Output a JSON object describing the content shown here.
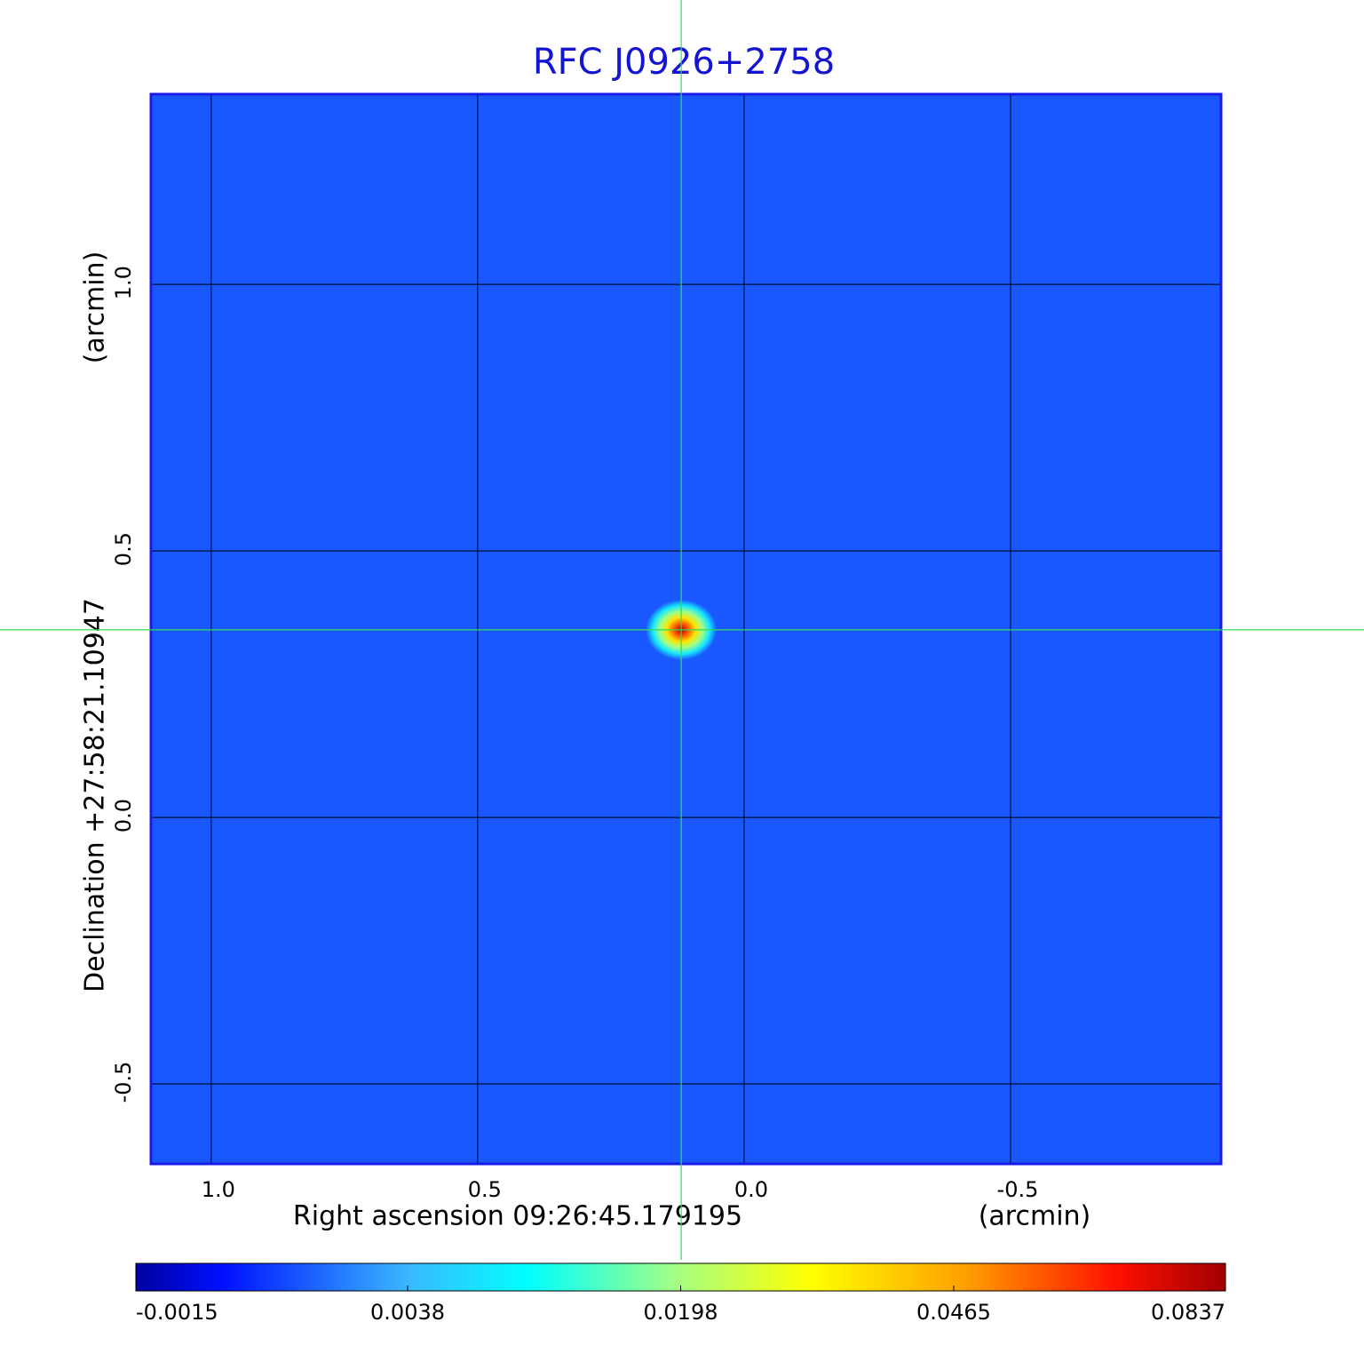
{
  "chart_data": {
    "type": "image",
    "title": "RFC J0926+2758",
    "xlabel": "Right ascension  09:26:45.179195",
    "xunit": "(arcmin)",
    "ylabel": "Declination  +27:58:21.10947",
    "yunit": "(arcmin)",
    "xlim": [
      1.113,
      -0.895
    ],
    "ylim": [
      -0.65,
      1.357
    ],
    "xticks": [
      {
        "value": 1,
        "label": "1.0"
      },
      {
        "value": 0.5,
        "label": "0.5"
      },
      {
        "value": 0,
        "label": "0.0"
      },
      {
        "value": -0.5,
        "label": "-0.5"
      }
    ],
    "yticks": [
      {
        "value": 1,
        "label": "1.0"
      },
      {
        "value": 0.5,
        "label": "0.5"
      },
      {
        "value": 0,
        "label": "0.0"
      },
      {
        "value": -0.5,
        "label": "-0.5"
      }
    ],
    "grid": true,
    "colormap": "jet",
    "color_scale": "sqrt",
    "clim": [
      -0.0015,
      0.0837
    ],
    "cticks": [
      -0.0015,
      0.0038,
      0.0198,
      0.0465,
      0.0837
    ],
    "image": {
      "background": 0.0005,
      "sources": [
        {
          "x": 0.118,
          "y": 0.352,
          "peak": 0.0837
        }
      ]
    },
    "crosshair": true,
    "title_color": "#1414d2",
    "frame_color": "#1a1ae6",
    "crosshair_color": "#33dd55"
  }
}
